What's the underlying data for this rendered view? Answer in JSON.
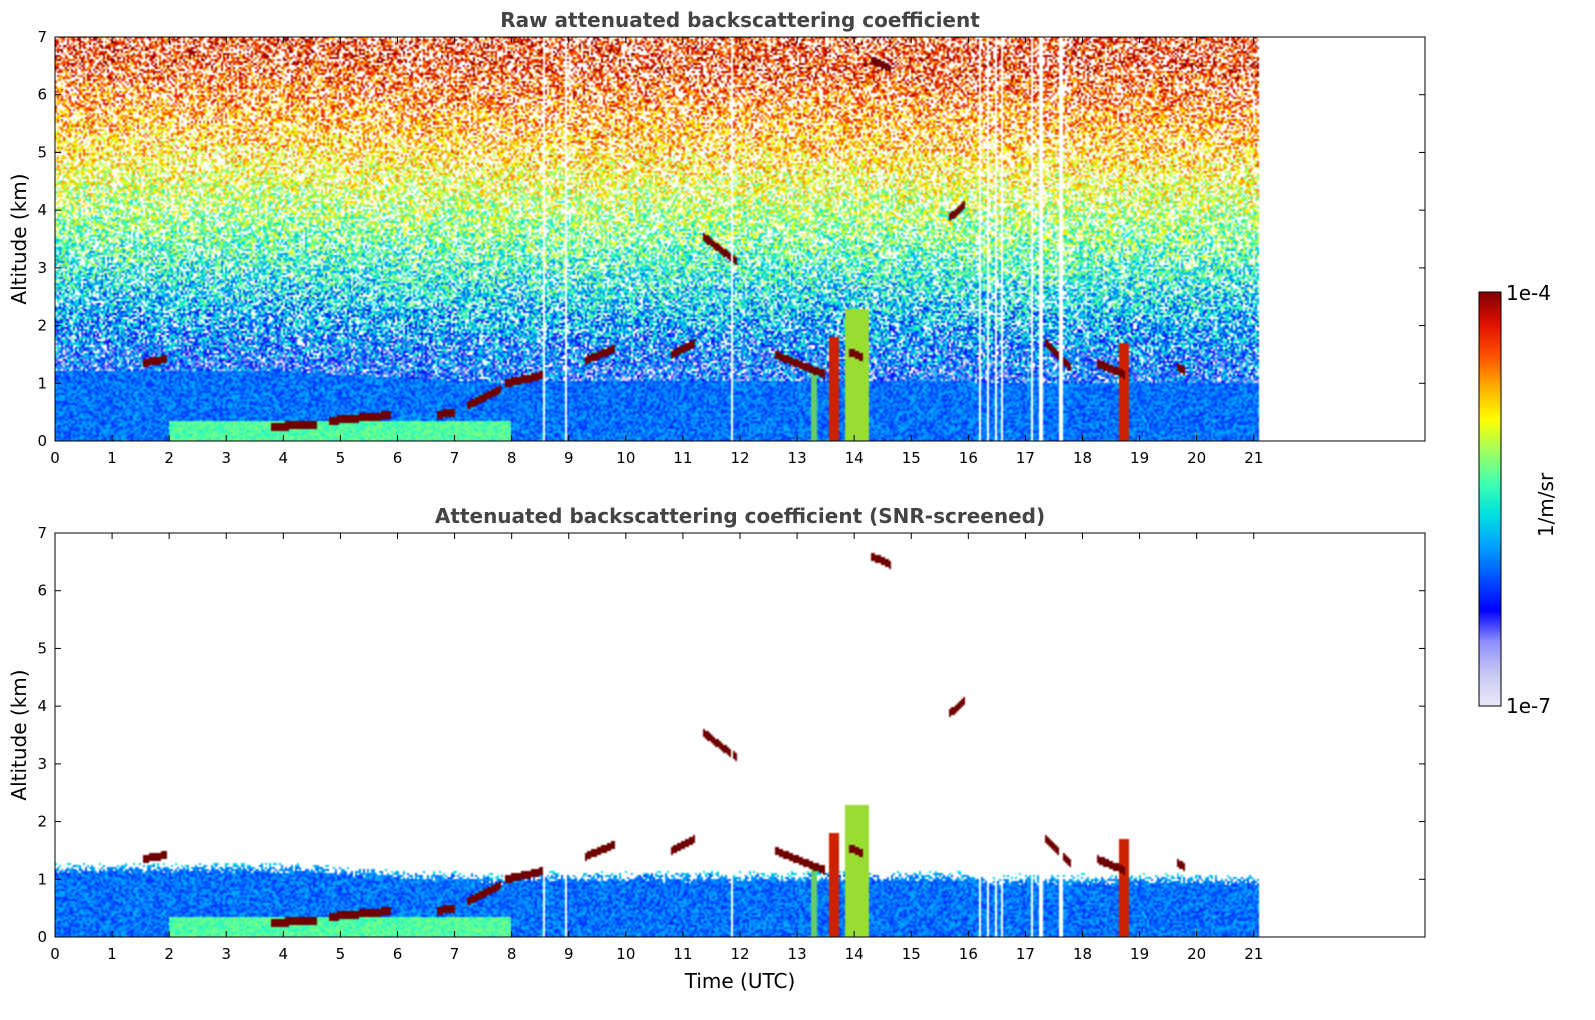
{
  "chart_data": [
    {
      "type": "heatmap",
      "title": "Raw attenuated backscattering coefficient",
      "xlabel": "",
      "ylabel": "Altitude (km)",
      "xlim": [
        0,
        24
      ],
      "ylim": [
        0,
        7
      ],
      "x_ticks": [
        "0",
        "1",
        "2",
        "3",
        "4",
        "5",
        "6",
        "7",
        "8",
        "9",
        "10",
        "11",
        "12",
        "13",
        "14",
        "15",
        "16",
        "17",
        "18",
        "19",
        "20",
        "21"
      ],
      "y_ticks": [
        "0",
        "1",
        "2",
        "3",
        "4",
        "5",
        "6",
        "7"
      ],
      "data_end_time": 21.1,
      "screened": false,
      "data_gaps_utc": [
        8.55,
        8.95,
        11.85,
        16.2,
        16.35,
        16.5,
        16.6,
        17.1,
        17.25,
        17.3,
        17.6,
        17.65
      ]
    },
    {
      "type": "heatmap",
      "title": "Attenuated backscattering coefficient (SNR-screened)",
      "xlabel": "Time (UTC)",
      "ylabel": "Altitude (km)",
      "xlim": [
        0,
        24
      ],
      "ylim": [
        0,
        7
      ],
      "x_ticks": [
        "0",
        "1",
        "2",
        "3",
        "4",
        "5",
        "6",
        "7",
        "8",
        "9",
        "10",
        "11",
        "12",
        "13",
        "14",
        "15",
        "16",
        "17",
        "18",
        "19",
        "20",
        "21"
      ],
      "y_ticks": [
        "0",
        "1",
        "2",
        "3",
        "4",
        "5",
        "6",
        "7"
      ],
      "data_end_time": 21.1,
      "screened": true
    }
  ],
  "features": {
    "cloud_segments": [
      {
        "t0": 1.55,
        "t1": 1.95,
        "z0": 1.35,
        "z1": 1.42
      },
      {
        "t0": 3.8,
        "t1": 4.6,
        "z0": 0.25,
        "z1": 0.28
      },
      {
        "t0": 4.8,
        "t1": 5.9,
        "z0": 0.35,
        "z1": 0.45
      },
      {
        "t0": 6.7,
        "t1": 7.0,
        "z0": 0.45,
        "z1": 0.5
      },
      {
        "t0": 7.2,
        "t1": 7.8,
        "z0": 0.6,
        "z1": 0.9
      },
      {
        "t0": 7.9,
        "t1": 8.6,
        "z0": 1.0,
        "z1": 1.15
      },
      {
        "t0": 9.3,
        "t1": 9.8,
        "z0": 1.4,
        "z1": 1.6
      },
      {
        "t0": 10.8,
        "t1": 11.2,
        "z0": 1.5,
        "z1": 1.7
      },
      {
        "t0": 11.35,
        "t1": 11.95,
        "z0": 3.55,
        "z1": 3.1
      },
      {
        "t0": 12.6,
        "t1": 13.5,
        "z0": 1.5,
        "z1": 1.15
      },
      {
        "t0": 13.9,
        "t1": 14.15,
        "z0": 1.55,
        "z1": 1.45
      },
      {
        "t0": 14.3,
        "t1": 14.65,
        "z0": 6.6,
        "z1": 6.45
      },
      {
        "t0": 15.65,
        "t1": 15.95,
        "z0": 3.85,
        "z1": 4.1
      },
      {
        "t0": 17.35,
        "t1": 17.8,
        "z0": 1.7,
        "z1": 1.25
      },
      {
        "t0": 18.25,
        "t1": 18.75,
        "z0": 1.35,
        "z1": 1.15
      },
      {
        "t0": 19.65,
        "t1": 19.8,
        "z0": 1.3,
        "z1": 1.2
      }
    ],
    "vertical_plumes": [
      {
        "t0": 13.55,
        "t1": 13.72,
        "z1": 1.8,
        "color": "#cc2200"
      },
      {
        "t0": 13.25,
        "t1": 13.35,
        "z1": 1.2,
        "color": "#66cc66"
      },
      {
        "t0": 13.85,
        "t1": 14.25,
        "z1": 2.3,
        "color": "#99dd33"
      },
      {
        "t0": 18.65,
        "t1": 18.8,
        "z1": 1.7,
        "color": "#cc2200"
      }
    ]
  },
  "colorbar": {
    "label": "1/m/sr",
    "max_label": "1e-4",
    "min_label": "1e-7",
    "colors": [
      "#e8e8fa",
      "#c8c8f4",
      "#9090ff",
      "#0000ff",
      "#0050ff",
      "#00a0ff",
      "#00e0e0",
      "#40ffb0",
      "#a0ff60",
      "#ffff00",
      "#ffb000",
      "#ff5000",
      "#e01000",
      "#800000"
    ]
  }
}
